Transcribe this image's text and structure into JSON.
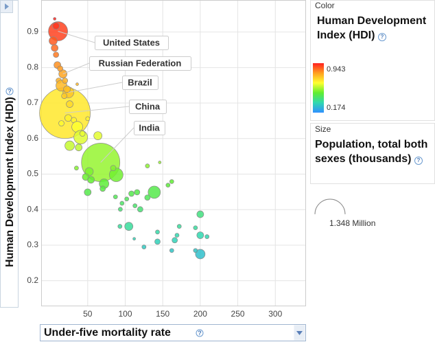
{
  "chart_data": {
    "type": "bubble",
    "x_label": "Under-five mortality rate",
    "y_label": "Human Development Index (HDI)",
    "xlim": [
      -12,
      340
    ],
    "xticks": [
      50,
      100,
      150,
      200,
      250,
      300
    ],
    "ylim": [
      0.13,
      0.99
    ],
    "yticks": [
      0.2,
      0.3,
      0.4,
      0.5,
      0.6,
      0.7,
      0.8,
      0.9
    ],
    "grid": true,
    "series": [
      {
        "x": [
          19.7,
          67.3,
          10.5,
          17,
          24.3,
          6,
          7.8,
          4,
          6,
          7.8,
          9.6,
          13.3,
          11.4,
          15,
          19.7,
          22.4,
          18.8,
          36,
          26,
          24,
          15,
          31.6,
          36.1,
          40.7,
          43,
          26,
          38,
          63.6,
          50,
          52,
          47.4,
          54.4,
          50,
          71.8,
          88,
          84,
          70,
          35,
          129.6,
          146,
          157,
          162,
          138.7,
          115.8,
          108.3,
          129.6,
          102,
          95.7,
          87,
          93.5,
          113,
          120,
          104.8,
          93,
          112,
          143,
          172,
          169,
          166,
          143,
          200,
          193.6,
          209,
          200,
          200,
          162,
          193.6,
          125
        ],
        "values": [
          0.672,
          0.533,
          0.902,
          0.782,
          0.73,
          0.937,
          0.917,
          0.875,
          0.855,
          0.836,
          0.807,
          0.797,
          0.763,
          0.749,
          0.763,
          0.739,
          0.72,
          0.753,
          0.697,
          0.658,
          0.643,
          0.652,
          0.633,
          0.604,
          0.614,
          0.58,
          0.575,
          0.608,
          0.656,
          0.507,
          0.492,
          0.484,
          0.449,
          0.473,
          0.498,
          0.517,
          0.459,
          0.517,
          0.523,
          0.533,
          0.469,
          0.479,
          0.449,
          0.449,
          0.445,
          0.434,
          0.43,
          0.418,
          0.436,
          0.401,
          0.411,
          0.401,
          0.353,
          0.353,
          0.318,
          0.337,
          0.353,
          0.328,
          0.314,
          0.31,
          0.387,
          0.349,
          0.324,
          0.328,
          0.275,
          0.285,
          0.285,
          0.295
        ],
        "sizes": [
          1340000,
          767000,
          192000,
          35200,
          62600,
          3900,
          24500,
          35200,
          24500,
          15700,
          24500,
          15700,
          15700,
          62600,
          15700,
          24500,
          15700,
          3900,
          24500,
          24500,
          15700,
          15700,
          62600,
          97900,
          15700,
          48000,
          24500,
          35200,
          8800,
          35200,
          24500,
          24500,
          24500,
          48000,
          97900,
          15700,
          15700,
          8800,
          8800,
          3900,
          8800,
          8800,
          79300,
          15700,
          15700,
          15700,
          8800,
          8800,
          8800,
          8800,
          8800,
          15700,
          35200,
          8800,
          3900,
          8800,
          8800,
          8800,
          15700,
          15700,
          24500,
          8800,
          8800,
          24500,
          48000,
          8800,
          8800,
          8800
        ],
        "names": [
          "China",
          "India",
          "United States",
          "Russian Federation",
          "Brazil",
          null,
          null,
          null,
          null,
          null,
          null,
          null,
          null,
          null,
          null,
          null,
          null,
          null,
          null,
          null,
          null,
          null,
          null,
          null,
          null,
          null,
          null,
          null,
          null,
          null,
          null,
          null,
          null,
          null,
          null,
          null,
          null,
          null,
          null,
          null,
          null,
          null,
          null,
          null,
          null,
          null,
          null,
          null,
          null,
          null,
          null,
          null,
          null,
          null,
          null,
          null,
          null,
          null,
          null,
          null,
          null,
          null,
          null,
          null,
          null,
          null,
          null,
          null
        ]
      }
    ],
    "color_legend": {
      "title": "Color",
      "label": "Human Development Index (HDI)",
      "max": 0.943,
      "min": 0.174,
      "colors": [
        "#ff2020",
        "#ffa020",
        "#ffff30",
        "#60ee30",
        "#30d8b0",
        "#3090ff"
      ]
    },
    "size_legend": {
      "title": "Size",
      "label": "Population, total both sexes (thousands)",
      "example": "1.348 Million"
    }
  }
}
